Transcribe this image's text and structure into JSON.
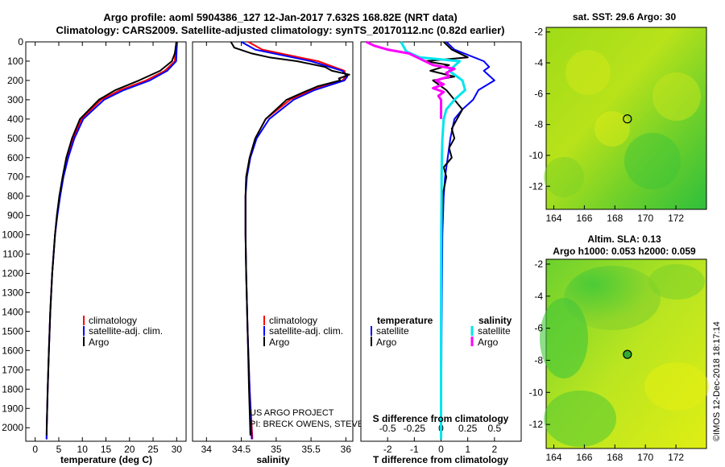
{
  "header": {
    "line1": "Argo profile: aoml 5904386_127 12-Jan-2017 7.632S 168.82E (NRT data)",
    "line2": "Climatology: CARS2009. Satellite-adjusted climatology: synTS_20170112.nc (0.82d earlier)"
  },
  "credits": {
    "project": "US ARGO PROJECT",
    "pis": "PI: BRECK OWENS, STEVE JAYNE, P.E. ROBBINS",
    "imos": "©IMOS 12-Dec-2018 18:17:14"
  },
  "colors": {
    "climatology": "#ff0000",
    "satellite": "#0000ff",
    "argo": "#000000",
    "sal_satellite": "#00e5ee",
    "sal_argo": "#ff00ff"
  },
  "chart_data": [
    {
      "type": "line",
      "id": "temperature",
      "xlabel": "temperature (deg C)",
      "ylabel": "",
      "xlim": [
        -2,
        32
      ],
      "ylim": [
        2070,
        0
      ],
      "x_ticks": [
        0,
        5,
        10,
        15,
        20,
        25,
        30
      ],
      "y_ticks": [
        0,
        100,
        200,
        300,
        400,
        500,
        600,
        700,
        800,
        900,
        1000,
        1100,
        1200,
        1300,
        1400,
        1500,
        1600,
        1700,
        1800,
        1900,
        2000
      ],
      "legend": {
        "items": [
          "climatology",
          "satellite-adj. clim.",
          "Argo"
        ]
      },
      "series": [
        {
          "name": "climatology",
          "color": "#ff0000",
          "depth": [
            0,
            40,
            100,
            150,
            200,
            250,
            300,
            400,
            500,
            600,
            700,
            800,
            900,
            1000,
            1200,
            1400,
            1600,
            1800,
            2000,
            2060
          ],
          "values": [
            29.9,
            29.8,
            29.6,
            27.5,
            23.5,
            18,
            14,
            9.8,
            8,
            6.8,
            5.9,
            5.2,
            4.6,
            4.2,
            3.6,
            3.2,
            2.9,
            2.65,
            2.45,
            2.4
          ]
        },
        {
          "name": "satellite-adj. clim.",
          "color": "#0000ff",
          "depth": [
            0,
            40,
            100,
            150,
            200,
            250,
            300,
            400,
            500,
            600,
            700,
            800,
            900,
            1000,
            1200,
            1400,
            1600,
            1800,
            2000,
            2060
          ],
          "values": [
            30.1,
            30,
            29.9,
            28,
            24.3,
            18.8,
            14.6,
            10.2,
            8.3,
            7,
            6,
            5.3,
            4.7,
            4.2,
            3.6,
            3.2,
            2.9,
            2.65,
            2.45,
            2.4
          ]
        },
        {
          "name": "Argo",
          "color": "#000000",
          "depth": [
            0,
            10,
            60,
            100,
            150,
            200,
            250,
            300,
            400,
            500,
            600,
            700,
            800,
            900,
            1000,
            1200,
            1400,
            1600,
            1800,
            2000,
            2040
          ],
          "values": [
            30,
            29.9,
            29.6,
            29,
            26.5,
            22,
            17,
            13.5,
            9.5,
            7.8,
            6.6,
            5.8,
            5.1,
            4.6,
            4.2,
            3.6,
            3.2,
            2.9,
            2.65,
            2.45,
            2.42
          ]
        }
      ]
    },
    {
      "type": "line",
      "id": "salinity",
      "xlabel": "salinity",
      "xlim": [
        33.8,
        36.1
      ],
      "ylim": [
        2070,
        0
      ],
      "x_ticks": [
        34,
        34.5,
        35,
        35.5,
        36
      ],
      "legend": {
        "items": [
          "climatology",
          "satellite-adj. clim.",
          "Argo"
        ]
      },
      "series": [
        {
          "name": "climatology",
          "color": "#ff0000",
          "depth": [
            0,
            40,
            100,
            150,
            180,
            200,
            250,
            300,
            400,
            500,
            600,
            700,
            800,
            1000,
            1200,
            1500,
            1800,
            2060
          ],
          "values": [
            34.6,
            34.8,
            35.6,
            35.98,
            36,
            35.95,
            35.5,
            35.2,
            34.85,
            34.7,
            34.62,
            34.57,
            34.56,
            34.56,
            34.57,
            34.59,
            34.62,
            34.66
          ]
        },
        {
          "name": "satellite-adj. clim.",
          "color": "#0000ff",
          "depth": [
            0,
            40,
            100,
            150,
            180,
            200,
            250,
            300,
            400,
            500,
            600,
            700,
            800,
            1000,
            1200,
            1500,
            1800,
            2060
          ],
          "values": [
            34.5,
            34.7,
            35.5,
            35.95,
            36.02,
            35.98,
            35.55,
            35.25,
            34.9,
            34.72,
            34.63,
            34.58,
            34.56,
            34.56,
            34.57,
            34.59,
            34.62,
            34.65
          ]
        },
        {
          "name": "Argo",
          "color": "#000000",
          "depth": [
            0,
            30,
            60,
            80,
            100,
            130,
            150,
            170,
            190,
            200,
            230,
            260,
            300,
            400,
            500,
            600,
            700,
            800,
            1000,
            1200,
            1500,
            1800,
            2040
          ],
          "values": [
            34.35,
            34.4,
            34.65,
            34.9,
            35.3,
            35.7,
            35.8,
            36.05,
            35.9,
            35.92,
            35.6,
            35.4,
            35.15,
            34.85,
            34.7,
            34.62,
            34.57,
            34.56,
            34.56,
            34.57,
            34.59,
            34.61,
            34.63
          ]
        }
      ]
    },
    {
      "type": "line",
      "id": "difference",
      "xlabel": "T difference from climatology",
      "xlabel_top": "S difference from climatology",
      "xlim": [
        -3,
        3
      ],
      "ylim": [
        2070,
        0
      ],
      "x_ticks": [
        -2,
        -1,
        0,
        1,
        2
      ],
      "x_ticks_top": [
        "-0.5",
        "-0.25",
        "0",
        "0.25",
        "0.5"
      ],
      "legend": {
        "temperature_heading": "temperature",
        "salinity_heading": "salinity",
        "satellite": "satellite",
        "argo": "Argo"
      },
      "series": [
        {
          "name": "T satellite",
          "color": "#0000ff",
          "depth": [
            0,
            40,
            100,
            130,
            150,
            200,
            250,
            300,
            350,
            400,
            500,
            600,
            700,
            800,
            1000,
            1500,
            2000,
            2060
          ],
          "values": [
            0.2,
            0.5,
            1.6,
            1.8,
            1.6,
            2.0,
            1.4,
            1.2,
            0.8,
            0.5,
            0.35,
            0.25,
            0.15,
            0.1,
            0.05,
            0.02,
            0.01,
            0
          ]
        },
        {
          "name": "T Argo",
          "color": "#000000",
          "depth": [
            0,
            40,
            80,
            100,
            120,
            150,
            180,
            200,
            250,
            300,
            350,
            400,
            450,
            500,
            550,
            600,
            650,
            700,
            800,
            1000,
            1500,
            2000,
            2040
          ],
          "values": [
            0.1,
            0.4,
            1.0,
            -0.6,
            0.3,
            -0.4,
            0.5,
            -0.3,
            0.2,
            0.5,
            0.8,
            0.6,
            0.4,
            0.5,
            0.3,
            0.4,
            0.1,
            0.2,
            0.05,
            0.02,
            0.01,
            0.01,
            0.01
          ]
        },
        {
          "name": "S satellite",
          "color": "#00e5ee",
          "depth": [
            0,
            50,
            80,
            100,
            150,
            200,
            250,
            300,
            350,
            400,
            500,
            600,
            700,
            800,
            1000,
            1500,
            2000,
            2060
          ],
          "values": [
            -1.5,
            -1.3,
            -0.8,
            0.7,
            0.3,
            0.8,
            0.9,
            0.5,
            0.2,
            0.1,
            0.05,
            0.03,
            0.02,
            0.02,
            0.01,
            0.0,
            0.0,
            0.0
          ]
        },
        {
          "name": "S Argo",
          "color": "#ff00ff",
          "depth": [
            0,
            20,
            40,
            60,
            80,
            100,
            120,
            140,
            160,
            180,
            200,
            220,
            240,
            260,
            280,
            300,
            350,
            400
          ],
          "values": [
            -2.8,
            -2.5,
            -2.0,
            -1.2,
            -0.9,
            -0.6,
            -0.3,
            0.5,
            0.2,
            0.3,
            -0.2,
            0.1,
            -0.3,
            0.1,
            -0.1,
            0.0,
            0.0,
            0.0
          ]
        }
      ]
    },
    {
      "type": "heatmap",
      "id": "sst_map",
      "title": "sat. SST: 29.6 Argo: 30",
      "xlim": [
        163.5,
        174
      ],
      "ylim": [
        -13.5,
        -1.7
      ],
      "x_ticks": [
        164,
        166,
        168,
        170,
        172
      ],
      "y_ticks": [
        -2,
        -4,
        -6,
        -8,
        -10,
        -12
      ],
      "marker": {
        "lon": 168.82,
        "lat": -7.632,
        "fill": "none"
      }
    },
    {
      "type": "heatmap",
      "id": "sla_map",
      "title": "Altim. SLA: 0.13",
      "subtitle": "Argo h1000: 0.053 h2000: 0.059",
      "xlim": [
        163.5,
        174
      ],
      "ylim": [
        -13.5,
        -1.7
      ],
      "x_ticks": [
        164,
        166,
        168,
        170,
        172
      ],
      "y_ticks": [
        -2,
        -4,
        -6,
        -8,
        -10,
        -12
      ],
      "marker": {
        "lon": 168.82,
        "lat": -7.632,
        "fill": "#33aa33"
      }
    }
  ]
}
